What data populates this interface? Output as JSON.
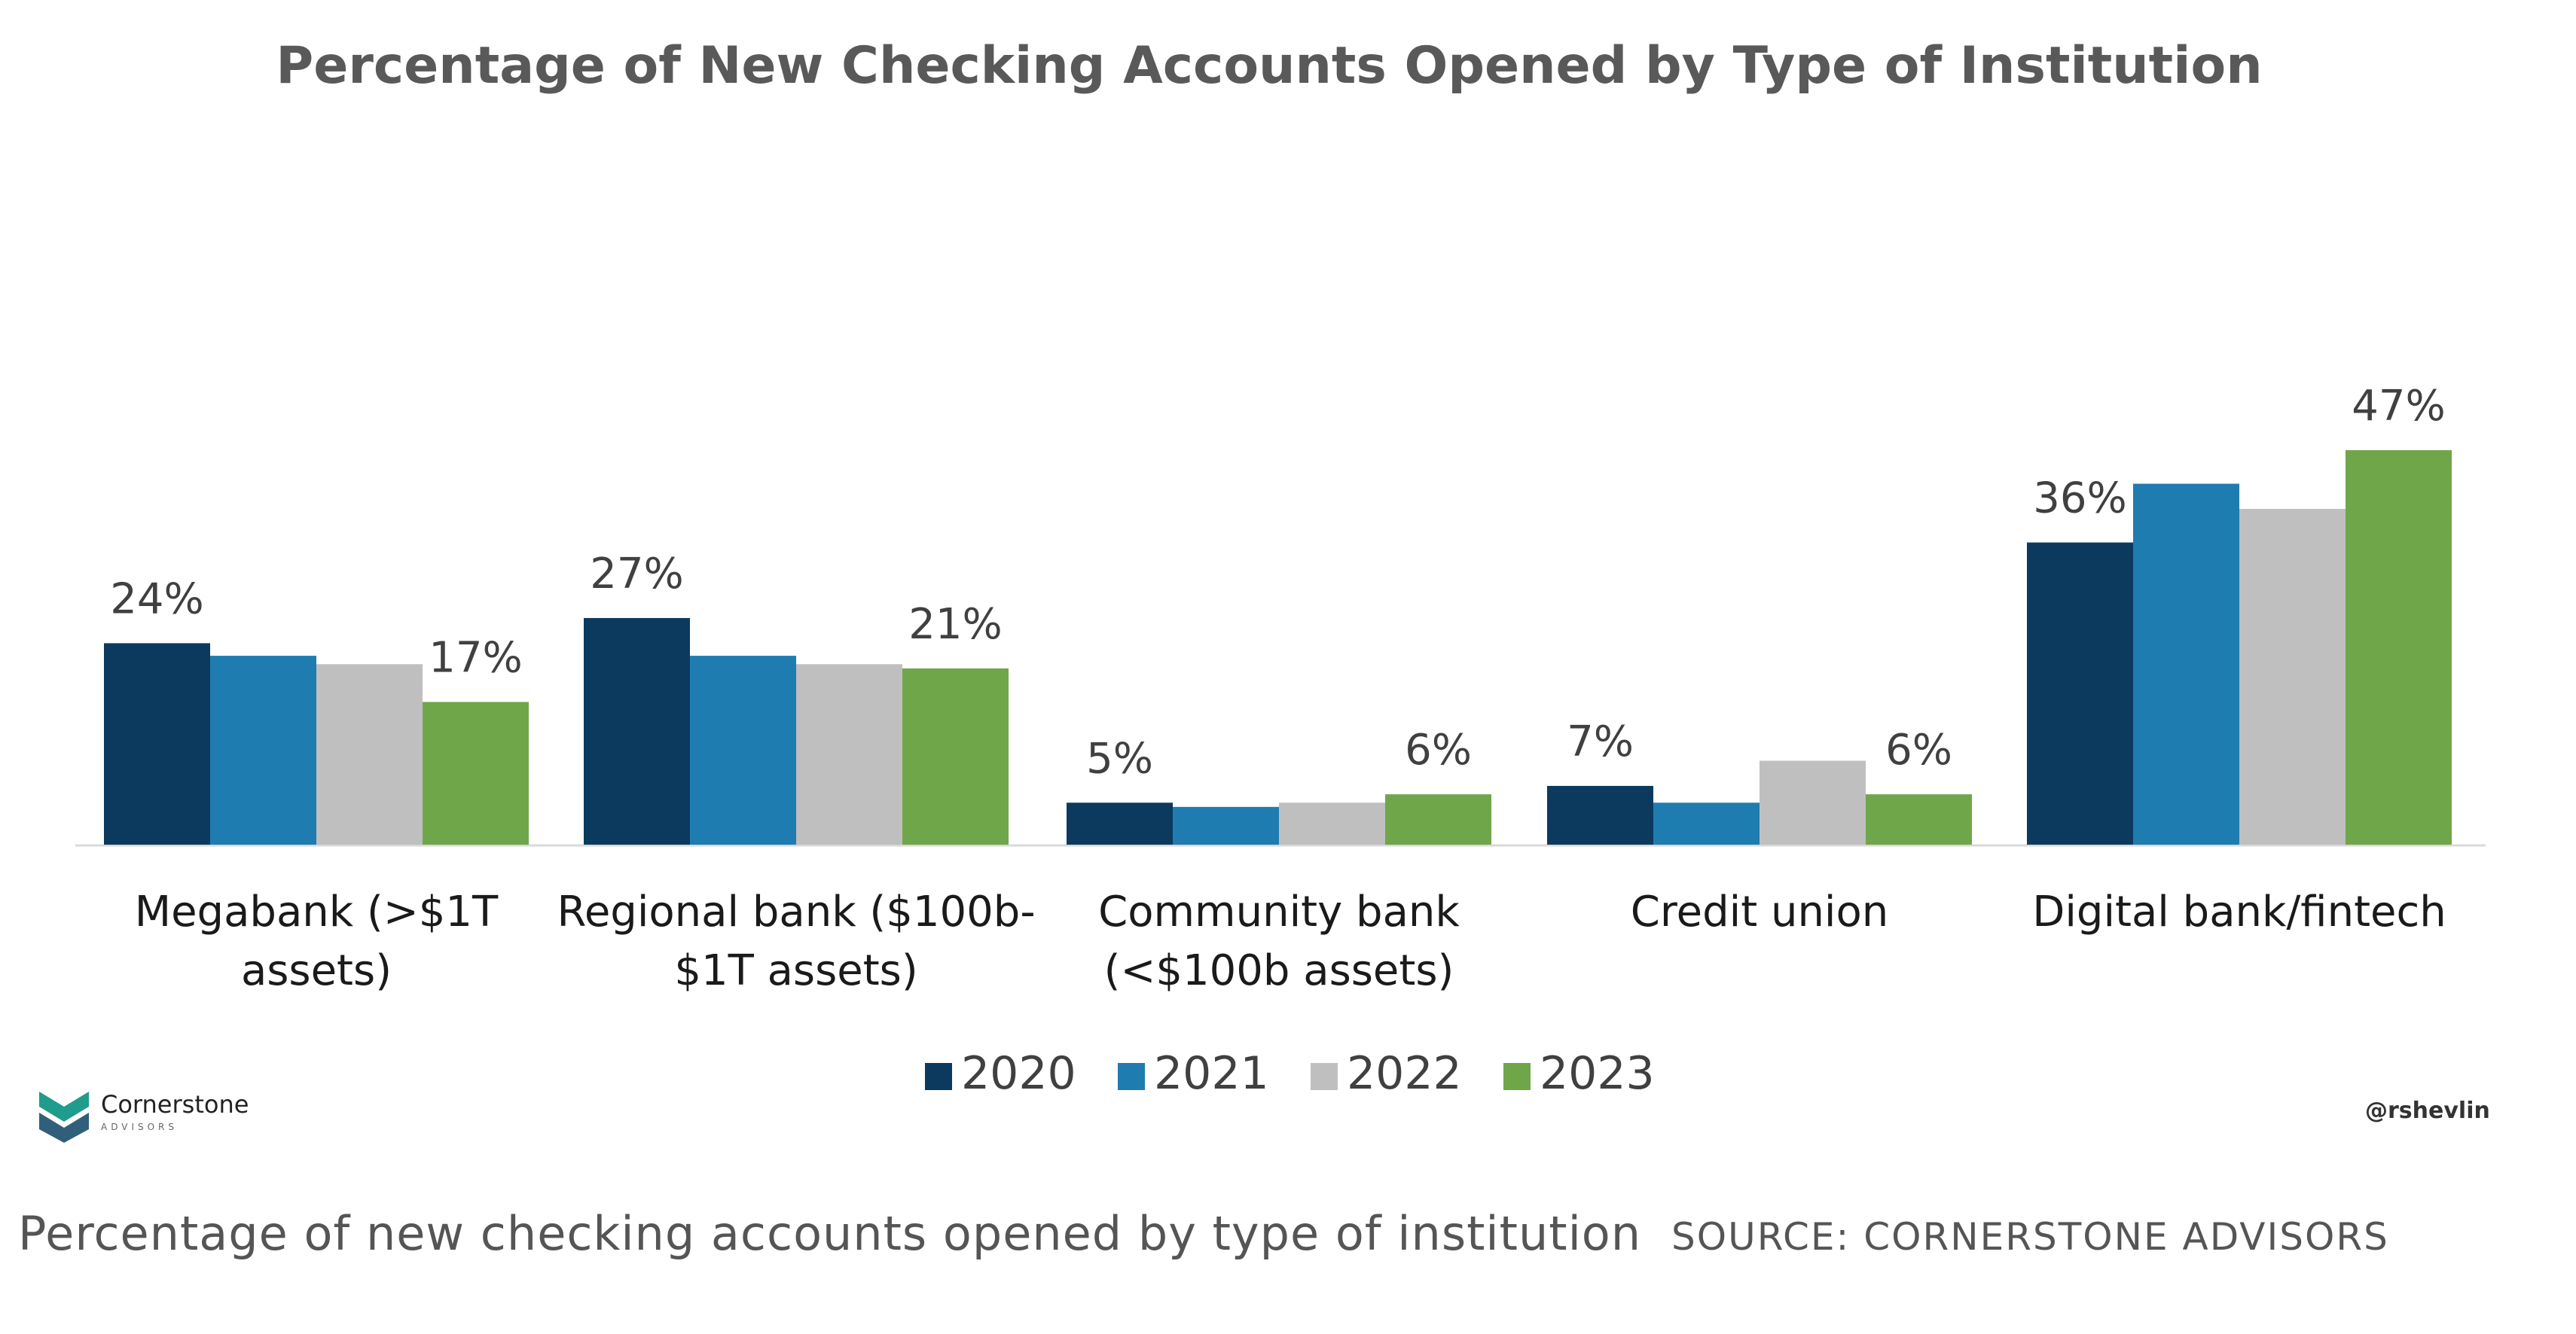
{
  "chart_data": {
    "type": "bar",
    "title": "Percentage of New Checking Accounts Opened by Type of Institution",
    "categories": [
      [
        "Megabank (>$1T",
        "assets)"
      ],
      [
        "Regional bank ($100b-",
        "$1T assets)"
      ],
      [
        "Community bank",
        "(<$100b assets)"
      ],
      [
        "Credit union"
      ],
      [
        "Digital bank/fintech"
      ]
    ],
    "series": [
      {
        "name": "2020",
        "color": "#0b3a5e",
        "values": [
          24,
          27,
          5,
          7,
          36
        ]
      },
      {
        "name": "2021",
        "color": "#1f7cb0",
        "values": [
          22.5,
          22.5,
          4.5,
          5,
          43
        ]
      },
      {
        "name": "2022",
        "color": "#bfbfbf",
        "values": [
          21.5,
          21.5,
          5,
          10,
          40
        ]
      },
      {
        "name": "2023",
        "color": "#70a64a",
        "values": [
          17,
          21,
          6,
          6,
          47
        ]
      }
    ],
    "data_labels": [
      {
        "category": 0,
        "series": 0,
        "text": "24%"
      },
      {
        "category": 0,
        "series": 3,
        "text": "17%"
      },
      {
        "category": 1,
        "series": 0,
        "text": "27%"
      },
      {
        "category": 1,
        "series": 3,
        "text": "21%"
      },
      {
        "category": 2,
        "series": 0,
        "text": "5%"
      },
      {
        "category": 2,
        "series": 3,
        "text": "6%"
      },
      {
        "category": 3,
        "series": 0,
        "text": "7%"
      },
      {
        "category": 3,
        "series": 3,
        "text": "6%"
      },
      {
        "category": 4,
        "series": 0,
        "text": "36%"
      },
      {
        "category": 4,
        "series": 3,
        "text": "47%"
      }
    ],
    "ylim": [
      0,
      50
    ],
    "grid": false,
    "legend": "bottom-center"
  },
  "branding": {
    "logo_name": "Cornerstone",
    "logo_sub": "ADVISORS",
    "logo_colors": [
      "#1f9c8c",
      "#2f5f7a"
    ],
    "handle": "@rshevlin"
  },
  "caption": {
    "text": "Percentage of new checking accounts opened by type of institution",
    "source": "SOURCE: CORNERSTONE ADVISORS"
  }
}
